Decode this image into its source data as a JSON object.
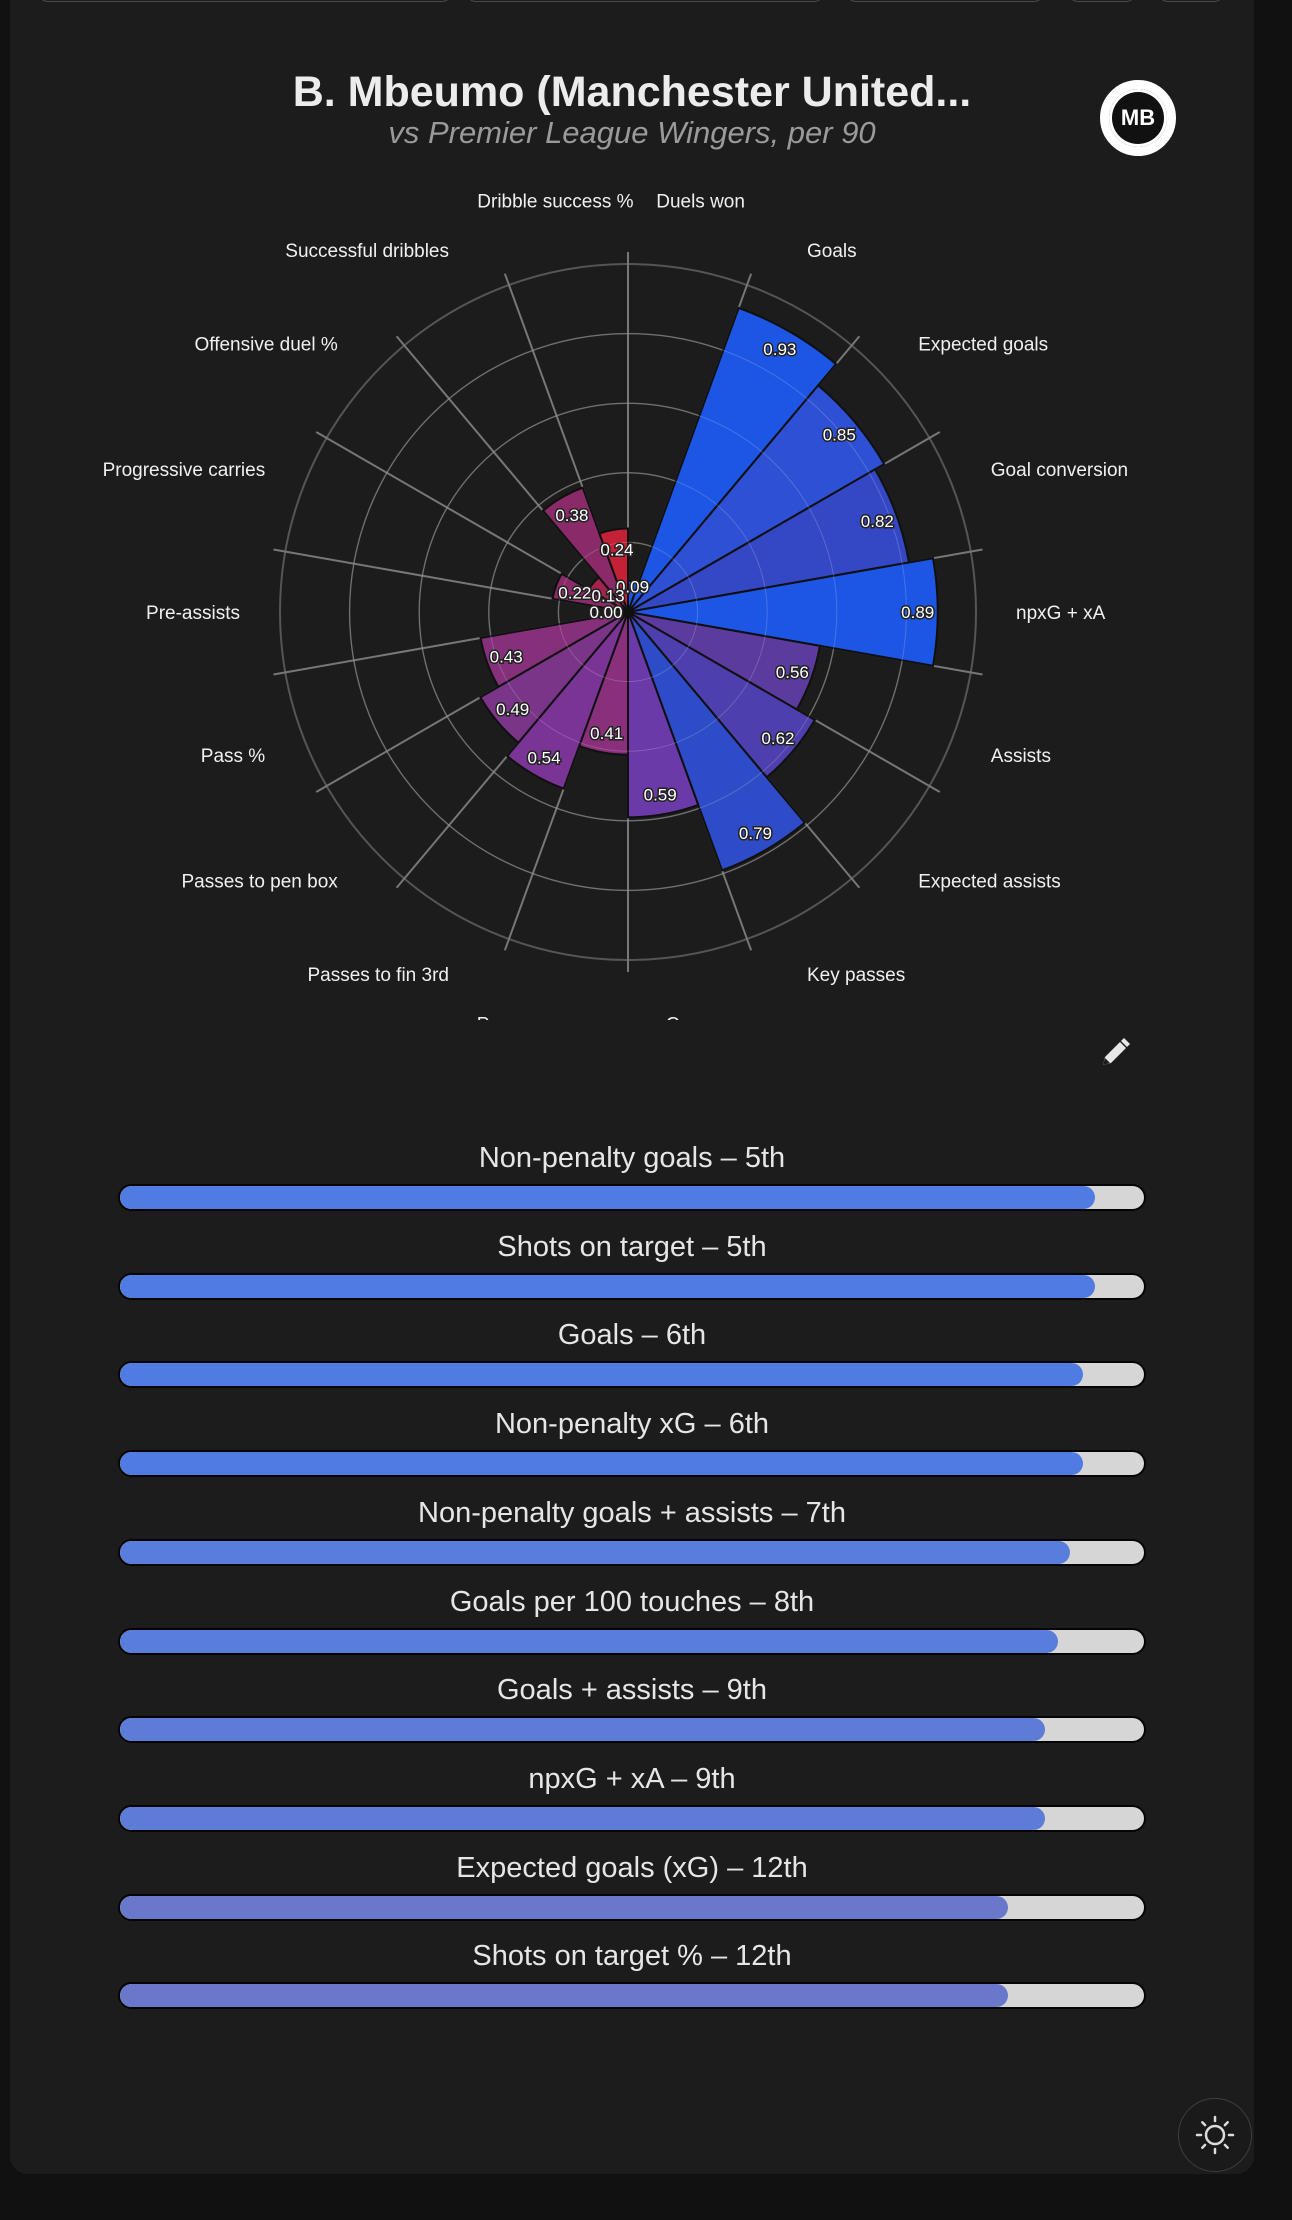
{
  "header": {
    "title": "B. Mbeumo (Manchester United...",
    "subtitle": "vs Premier League Wingers, per 90",
    "logo_text": "MB"
  },
  "chart_data": {
    "type": "polar-bar",
    "rlim": [
      0,
      1
    ],
    "grid": true,
    "categories": [
      "Duels won",
      "Goals",
      "Expected goals",
      "Goal conversion",
      "npxG + xA",
      "Assists",
      "Expected assists",
      "Key passes",
      "Crosses",
      "Prog passes comp",
      "Passes to fin 3rd",
      "Passes to pen box",
      "Pass %",
      "Pre-assists",
      "Progressive carries",
      "Offensive duel %",
      "Successful dribbles",
      "Dribble success %"
    ],
    "values": [
      0.09,
      0.93,
      0.85,
      0.82,
      0.89,
      0.56,
      0.62,
      0.79,
      0.59,
      0.41,
      0.54,
      0.49,
      0.43,
      0.0,
      0.22,
      0.13,
      0.38,
      0.24
    ],
    "value_labels": [
      "0.09",
      "0.93",
      "0.85",
      "0.82",
      "0.89",
      "0.56",
      "0.62",
      "0.79",
      "0.59",
      "0.41",
      "0.54",
      "0.49",
      "0.43",
      "0.00",
      "0.22",
      "0.13",
      "0.38",
      "0.24"
    ],
    "colors": [
      "#1d56e4",
      "#1d56e4",
      "#2e50d4",
      "#3448c6",
      "#1d56e4",
      "#5c3b9e",
      "#4d3fae",
      "#2e4cc8",
      "#6a3aa8",
      "#8a2f7c",
      "#7a3496",
      "#7a3488",
      "#86307c",
      "#c02030",
      "#8a2a68",
      "#a02450",
      "#8a2a68",
      "#c42036"
    ]
  },
  "bars": [
    {
      "label": "Non-penalty goals – 5th",
      "fill_fraction": 0.952,
      "color": "#4f7be2"
    },
    {
      "label": "Shots on target – 5th",
      "fill_fraction": 0.952,
      "color": "#4f7be2"
    },
    {
      "label": "Goals – 6th",
      "fill_fraction": 0.94,
      "color": "#4f7be2"
    },
    {
      "label": "Non-penalty xG – 6th",
      "fill_fraction": 0.94,
      "color": "#4f7be2"
    },
    {
      "label": "Non-penalty goals + assists – 7th",
      "fill_fraction": 0.928,
      "color": "#587ddc"
    },
    {
      "label": "Goals per 100 touches – 8th",
      "fill_fraction": 0.916,
      "color": "#587ddc"
    },
    {
      "label": "Goals + assists – 9th",
      "fill_fraction": 0.903,
      "color": "#5d7cd8"
    },
    {
      "label": "npxG + xA – 9th",
      "fill_fraction": 0.903,
      "color": "#5d7cd8"
    },
    {
      "label": "Expected goals (xG) – 12th",
      "fill_fraction": 0.867,
      "color": "#6a78cc"
    },
    {
      "label": "Shots on target % – 12th",
      "fill_fraction": 0.867,
      "color": "#6a78cc"
    }
  ],
  "icons": {
    "edit": "pencil-icon",
    "theme": "sun-icon",
    "menu": "menu-icon"
  }
}
